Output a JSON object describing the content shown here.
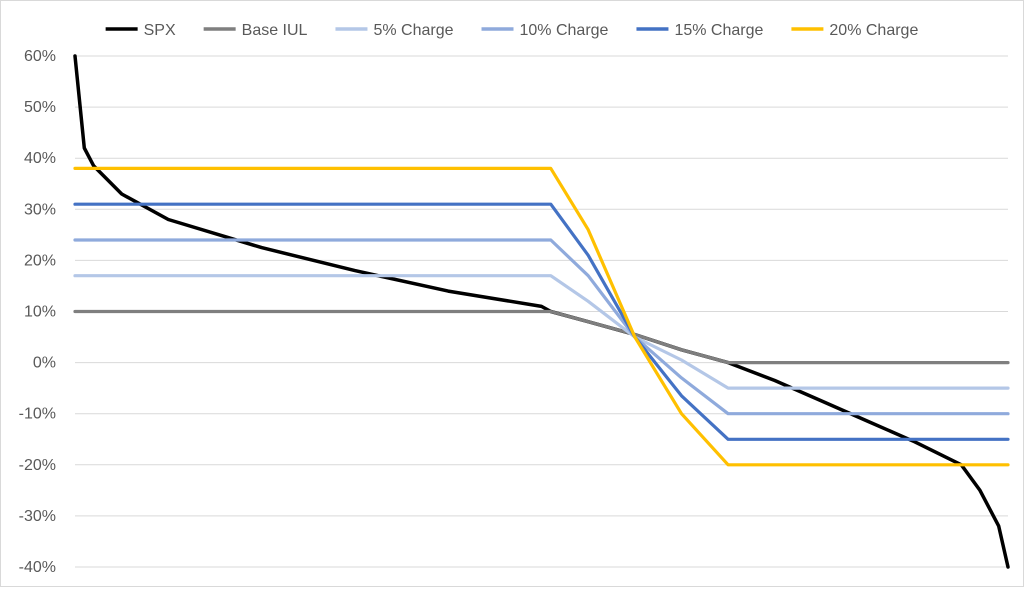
{
  "chart_data": {
    "type": "line",
    "title": "",
    "xlabel": "",
    "ylabel": "",
    "ylim": [
      -0.4,
      0.6
    ],
    "y_ticks": [
      0.6,
      0.5,
      0.4,
      0.3,
      0.2,
      0.1,
      0.0,
      -0.1,
      -0.2,
      -0.3,
      -0.4
    ],
    "y_tick_labels": [
      "60%",
      "50%",
      "40%",
      "30%",
      "20%",
      "10%",
      "0%",
      "-10%",
      "-20%",
      "-30%",
      "-40%"
    ],
    "x_ticks_shown": false,
    "grid": "horizontal",
    "legend_position": "top",
    "x": [
      0,
      0.01,
      0.02,
      0.05,
      0.1,
      0.2,
      0.3,
      0.4,
      0.5,
      0.51,
      0.55,
      0.6,
      0.65,
      0.7,
      0.75,
      0.8,
      0.85,
      0.9,
      0.95,
      0.97,
      0.99,
      1.0
    ],
    "series": [
      {
        "name": "SPX",
        "color": "#000000",
        "values": [
          0.6,
          0.42,
          0.385,
          0.33,
          0.28,
          0.225,
          0.18,
          0.14,
          0.11,
          0.1,
          0.08,
          0.055,
          0.025,
          0.0,
          -0.035,
          -0.075,
          -0.115,
          -0.155,
          -0.2,
          -0.25,
          -0.32,
          -0.4
        ]
      },
      {
        "name": "Base IUL",
        "color": "#7f7f7f",
        "values": [
          0.1,
          0.1,
          0.1,
          0.1,
          0.1,
          0.1,
          0.1,
          0.1,
          0.1,
          0.1,
          0.08,
          0.055,
          0.025,
          0.0,
          0.0,
          0.0,
          0.0,
          0.0,
          0.0,
          0.0,
          0.0,
          0.0
        ]
      },
      {
        "name": "5% Charge",
        "color": "#b4c7e7",
        "values": [
          0.17,
          0.17,
          0.17,
          0.17,
          0.17,
          0.17,
          0.17,
          0.17,
          0.17,
          0.17,
          0.12,
          0.05,
          0.005,
          -0.05,
          -0.05,
          -0.05,
          -0.05,
          -0.05,
          -0.05,
          -0.05,
          -0.05,
          -0.05
        ]
      },
      {
        "name": "10% Charge",
        "color": "#8faadc",
        "values": [
          0.24,
          0.24,
          0.24,
          0.24,
          0.24,
          0.24,
          0.24,
          0.24,
          0.24,
          0.24,
          0.17,
          0.05,
          -0.03,
          -0.1,
          -0.1,
          -0.1,
          -0.1,
          -0.1,
          -0.1,
          -0.1,
          -0.1,
          -0.1
        ]
      },
      {
        "name": "15% Charge",
        "color": "#4472c4",
        "values": [
          0.31,
          0.31,
          0.31,
          0.31,
          0.31,
          0.31,
          0.31,
          0.31,
          0.31,
          0.31,
          0.21,
          0.05,
          -0.065,
          -0.15,
          -0.15,
          -0.15,
          -0.15,
          -0.15,
          -0.15,
          -0.15,
          -0.15,
          -0.15
        ]
      },
      {
        "name": "20% Charge",
        "color": "#ffc000",
        "values": [
          0.38,
          0.38,
          0.38,
          0.38,
          0.38,
          0.38,
          0.38,
          0.38,
          0.38,
          0.38,
          0.26,
          0.05,
          -0.1,
          -0.2,
          -0.2,
          -0.2,
          -0.2,
          -0.2,
          -0.2,
          -0.2,
          -0.2,
          -0.2
        ]
      }
    ]
  }
}
